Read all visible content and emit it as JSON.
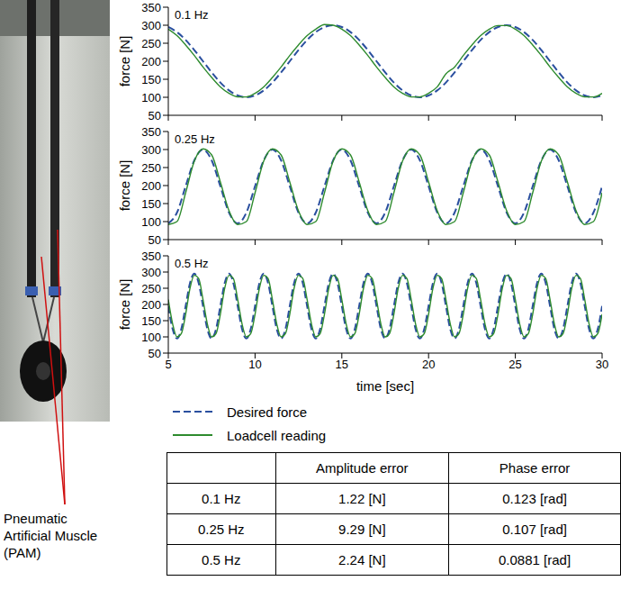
{
  "chart_data": [
    {
      "type": "line",
      "title": "0.1 Hz",
      "y_label": "force [N]",
      "xlim": [
        5,
        30
      ],
      "xticks": [
        5,
        10,
        15,
        20,
        25,
        30
      ],
      "ylim": [
        50,
        350
      ],
      "yticks": [
        50,
        100,
        150,
        200,
        250,
        300,
        350
      ],
      "tick_labels": "y",
      "x": [
        5,
        5.5,
        6,
        6.5,
        7,
        7.5,
        8,
        8.5,
        9,
        9.5,
        10,
        10.5,
        11,
        11.5,
        12,
        12.5,
        13,
        13.5,
        14,
        14.5,
        15,
        15.5,
        16,
        16.5,
        17,
        17.5,
        18,
        18.5,
        19,
        19.5,
        20,
        20.5,
        21,
        21.5,
        22,
        22.5,
        23,
        23.5,
        24,
        24.5,
        25,
        25.5,
        26,
        26.5,
        27,
        27.5,
        28,
        28.5,
        29,
        29.5,
        30
      ],
      "series": [
        {
          "name": "Desired force",
          "color": "#2a4f9f",
          "line_style": "dashed",
          "values": [
            295,
            281,
            259,
            231,
            200,
            169,
            141,
            119,
            105,
            100,
            105,
            119,
            141,
            169,
            200,
            231,
            259,
            281,
            295,
            300,
            295,
            281,
            259,
            231,
            200,
            169,
            141,
            119,
            105,
            100,
            105,
            119,
            141,
            169,
            200,
            231,
            259,
            281,
            295,
            300,
            295,
            281,
            259,
            231,
            200,
            169,
            141,
            119,
            105,
            100,
            105
          ]
        },
        {
          "name": "Loadcell reading",
          "color": "#2e8b2e",
          "line_style": "solid",
          "values": [
            289,
            271,
            245,
            216,
            184,
            155,
            129,
            111,
            101,
            101,
            111,
            129,
            155,
            184,
            216,
            245,
            271,
            289,
            302,
            300,
            289,
            271,
            245,
            216,
            184,
            155,
            129,
            111,
            101,
            101,
            111,
            129,
            165,
            184,
            216,
            245,
            271,
            289,
            299,
            299,
            289,
            271,
            245,
            216,
            184,
            155,
            129,
            111,
            101,
            101,
            111
          ]
        }
      ]
    },
    {
      "type": "line",
      "title": "0.25 Hz",
      "y_label": "force [N]",
      "xlim": [
        5,
        30
      ],
      "xticks": [
        5,
        10,
        15,
        20,
        25,
        30
      ],
      "ylim": [
        50,
        350
      ],
      "yticks": [
        50,
        100,
        150,
        200,
        250,
        300,
        350
      ],
      "tick_labels": "y",
      "x": [
        5,
        5.5,
        6,
        6.5,
        7,
        7.5,
        8,
        8.5,
        9,
        9.5,
        10,
        10.5,
        11,
        11.5,
        12,
        12.5,
        13,
        13.5,
        14,
        14.5,
        15,
        15.5,
        16,
        16.5,
        17,
        17.5,
        18,
        18.5,
        19,
        19.5,
        20,
        20.5,
        21,
        21.5,
        22,
        22.5,
        23,
        23.5,
        24,
        24.5,
        25,
        25.5,
        26,
        26.5,
        27,
        27.5,
        28,
        28.5,
        29,
        29.5,
        30
      ],
      "series": [
        {
          "name": "Desired force",
          "color": "#2a4f9f",
          "line_style": "dashed",
          "values": [
            95,
            125,
            198,
            270,
            300,
            270,
            198,
            125,
            95,
            125,
            198,
            270,
            300,
            270,
            198,
            125,
            95,
            125,
            198,
            270,
            300,
            270,
            198,
            125,
            95,
            125,
            198,
            270,
            300,
            270,
            198,
            125,
            95,
            125,
            198,
            270,
            300,
            270,
            198,
            125,
            95,
            125,
            198,
            270,
            300,
            270,
            198,
            125,
            95,
            125,
            198
          ]
        },
        {
          "name": "Loadcell reading",
          "color": "#2e8b2e",
          "line_style": "solid",
          "values": [
            92,
            100,
            180,
            268,
            302,
            285,
            210,
            130,
            92,
            100,
            180,
            268,
            302,
            285,
            210,
            130,
            92,
            100,
            180,
            268,
            302,
            285,
            210,
            130,
            92,
            100,
            180,
            268,
            302,
            285,
            210,
            130,
            92,
            100,
            180,
            268,
            302,
            285,
            210,
            130,
            92,
            100,
            180,
            268,
            302,
            285,
            210,
            130,
            92,
            100,
            180
          ]
        }
      ]
    },
    {
      "type": "line",
      "title": "0.5 Hz",
      "y_label": "force [N]",
      "x_label": "time [sec]",
      "xlim": [
        5,
        30
      ],
      "xticks": [
        5,
        10,
        15,
        20,
        25,
        30
      ],
      "ylim": [
        50,
        350
      ],
      "yticks": [
        50,
        100,
        150,
        200,
        250,
        300,
        350
      ],
      "legend": "bottom",
      "x": [
        5,
        5.25,
        5.5,
        5.75,
        6,
        6.25,
        6.5,
        6.75,
        7,
        7.25,
        7.5,
        7.75,
        8,
        8.25,
        8.5,
        8.75,
        9,
        9.25,
        9.5,
        9.75,
        10,
        10.25,
        10.5,
        10.75,
        11,
        11.25,
        11.5,
        11.75,
        12,
        12.25,
        12.5,
        12.75,
        13,
        13.25,
        13.5,
        13.75,
        14,
        14.25,
        14.5,
        14.75,
        15,
        15.25,
        15.5,
        15.75,
        16,
        16.25,
        16.5,
        16.75,
        17,
        17.25,
        17.5,
        17.75,
        18,
        18.25,
        18.5,
        18.75,
        19,
        19.25,
        19.5,
        19.75,
        20,
        20.25,
        20.5,
        20.75,
        21,
        21.25,
        21.5,
        21.75,
        22,
        22.25,
        22.5,
        22.75,
        23,
        23.25,
        23.5,
        23.75,
        24,
        24.25,
        24.5,
        24.75,
        25,
        25.25,
        25.5,
        25.75,
        26,
        26.25,
        26.5,
        26.75,
        27,
        27.25,
        27.5,
        27.75,
        28,
        28.25,
        28.5,
        28.75,
        29,
        29.25,
        29.5,
        29.75,
        30
      ],
      "series": [
        {
          "name": "Desired force",
          "color": "#2a4f9f",
          "line_style": "dashed",
          "values": [
            195,
            124,
            95,
            124,
            195,
            266,
            295,
            266,
            195,
            124,
            95,
            124,
            195,
            266,
            295,
            266,
            195,
            124,
            95,
            124,
            195,
            266,
            295,
            266,
            195,
            124,
            95,
            124,
            195,
            266,
            295,
            266,
            195,
            124,
            95,
            124,
            195,
            266,
            295,
            266,
            195,
            124,
            95,
            124,
            195,
            266,
            295,
            266,
            195,
            124,
            95,
            124,
            195,
            266,
            295,
            266,
            195,
            124,
            95,
            124,
            195,
            266,
            295,
            266,
            195,
            124,
            95,
            124,
            195,
            266,
            295,
            266,
            195,
            124,
            95,
            124,
            195,
            266,
            295,
            266,
            195,
            124,
            95,
            124,
            195,
            266,
            295,
            266,
            195,
            124,
            95,
            124,
            195,
            266,
            295,
            266,
            195,
            124,
            95,
            124,
            195
          ]
        },
        {
          "name": "Loadcell reading",
          "color": "#2e8b2e",
          "line_style": "solid",
          "values": [
            215,
            140,
            100,
            110,
            170,
            250,
            290,
            280,
            215,
            140,
            100,
            110,
            170,
            250,
            290,
            280,
            215,
            140,
            100,
            110,
            170,
            250,
            290,
            280,
            215,
            140,
            100,
            110,
            170,
            250,
            290,
            280,
            215,
            140,
            100,
            110,
            170,
            250,
            290,
            280,
            215,
            140,
            100,
            110,
            170,
            250,
            290,
            280,
            215,
            140,
            100,
            110,
            170,
            250,
            290,
            280,
            215,
            140,
            100,
            110,
            170,
            250,
            290,
            280,
            215,
            140,
            100,
            110,
            170,
            250,
            290,
            280,
            215,
            140,
            100,
            110,
            170,
            250,
            290,
            280,
            215,
            140,
            100,
            110,
            170,
            250,
            290,
            280,
            215,
            140,
            100,
            110,
            170,
            250,
            290,
            280,
            215,
            140,
            100,
            110,
            170
          ]
        }
      ]
    }
  ],
  "photo_label": "Pneumatic Artificial Muscle (PAM)",
  "table": {
    "header": [
      null,
      "Amplitude error",
      "Phase error"
    ],
    "rows": [
      [
        "0.1 Hz",
        "1.22 [N]",
        "0.123 [rad]"
      ],
      [
        "0.25 Hz",
        "9.29 [N]",
        "0.107 [rad]"
      ],
      [
        "0.5 Hz",
        "2.24 [N]",
        "0.0881 [rad]"
      ]
    ]
  }
}
